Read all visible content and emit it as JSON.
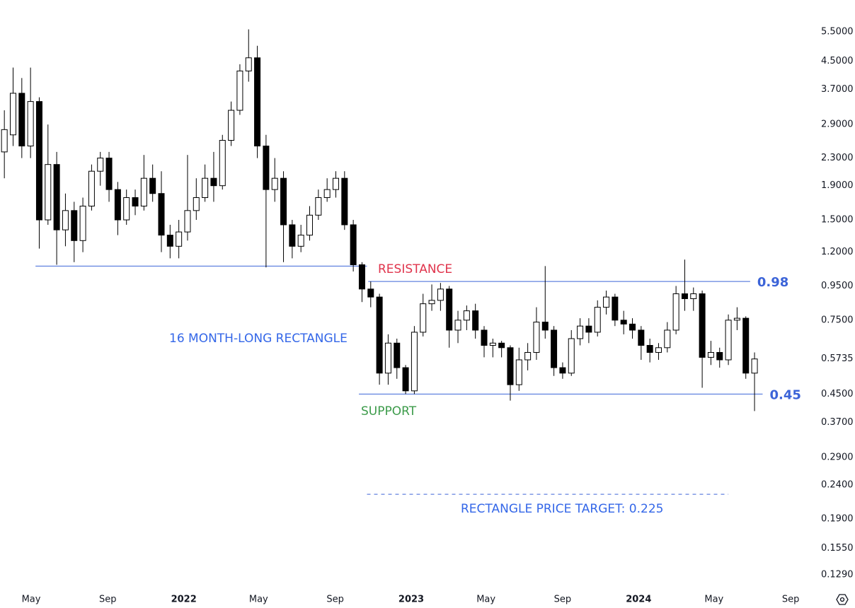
{
  "chart_data": {
    "type": "candlestick",
    "log_scale": true,
    "grid": false,
    "up_color": "#ffffff",
    "down_color": "#000000",
    "outline_color": "#000000",
    "x": [
      "2021-03-19",
      "2021-04-02",
      "2021-04-16",
      "2021-04-30",
      "2021-05-14",
      "2021-05-28",
      "2021-06-11",
      "2021-06-25",
      "2021-07-09",
      "2021-07-23",
      "2021-08-06",
      "2021-08-20",
      "2021-09-03",
      "2021-09-17",
      "2021-10-01",
      "2021-10-15",
      "2021-10-29",
      "2021-11-12",
      "2021-11-26",
      "2021-12-10",
      "2021-12-24",
      "2022-01-07",
      "2022-01-21",
      "2022-02-04",
      "2022-02-18",
      "2022-03-04",
      "2022-03-18",
      "2022-04-01",
      "2022-04-15",
      "2022-04-29",
      "2022-05-13",
      "2022-05-27",
      "2022-06-10",
      "2022-06-24",
      "2022-07-08",
      "2022-07-22",
      "2022-08-05",
      "2022-08-19",
      "2022-09-02",
      "2022-09-16",
      "2022-09-30",
      "2022-10-14",
      "2022-10-28",
      "2022-11-11",
      "2022-11-25",
      "2022-12-09",
      "2022-12-23",
      "2023-01-06",
      "2023-01-20",
      "2023-02-03",
      "2023-02-17",
      "2023-03-03",
      "2023-03-17",
      "2023-03-31",
      "2023-04-14",
      "2023-04-28",
      "2023-05-12",
      "2023-05-26",
      "2023-06-09",
      "2023-06-23",
      "2023-07-07",
      "2023-07-21",
      "2023-08-04",
      "2023-08-18",
      "2023-09-01",
      "2023-09-15",
      "2023-09-29",
      "2023-10-13",
      "2023-10-27",
      "2023-11-10",
      "2023-11-24",
      "2023-12-08",
      "2023-12-22",
      "2024-01-05",
      "2024-01-19",
      "2024-02-02",
      "2024-02-16",
      "2024-03-01",
      "2024-03-15",
      "2024-03-29",
      "2024-04-12",
      "2024-04-26",
      "2024-05-10",
      "2024-05-24",
      "2024-06-07",
      "2024-06-21",
      "2024-07-05"
    ],
    "open": [
      2.4,
      2.7,
      3.6,
      2.5,
      3.4,
      1.5,
      2.2,
      1.4,
      1.6,
      1.3,
      1.65,
      2.1,
      2.3,
      1.85,
      1.5,
      1.75,
      1.65,
      2.0,
      1.8,
      1.35,
      1.25,
      1.38,
      1.6,
      1.75,
      2.0,
      1.9,
      2.6,
      3.2,
      4.2,
      4.6,
      2.5,
      1.85,
      2.0,
      1.45,
      1.25,
      1.35,
      1.55,
      1.75,
      1.85,
      2.0,
      1.45,
      1.1,
      0.93,
      0.88,
      0.52,
      0.64,
      0.54,
      0.46,
      0.69,
      0.84,
      0.86,
      0.93,
      0.7,
      0.75,
      0.8,
      0.7,
      0.63,
      0.64,
      0.62,
      0.48,
      0.57,
      0.6,
      0.74,
      0.7,
      0.54,
      0.52,
      0.66,
      0.72,
      0.69,
      0.82,
      0.88,
      0.75,
      0.73,
      0.7,
      0.63,
      0.6,
      0.62,
      0.7,
      0.9,
      0.87,
      0.9,
      0.58,
      0.6,
      0.57,
      0.75,
      0.76,
      0.52
    ],
    "high": [
      3.2,
      4.3,
      4.0,
      4.3,
      3.5,
      2.9,
      2.4,
      1.8,
      1.7,
      1.75,
      2.2,
      2.4,
      2.4,
      1.95,
      1.85,
      1.85,
      2.35,
      2.2,
      2.1,
      1.45,
      1.5,
      2.35,
      2.0,
      2.2,
      2.4,
      2.7,
      3.4,
      4.4,
      5.6,
      5.0,
      2.7,
      2.3,
      2.1,
      1.5,
      1.45,
      1.65,
      1.85,
      2.0,
      2.1,
      2.1,
      1.5,
      1.12,
      0.98,
      0.9,
      0.68,
      0.66,
      0.55,
      0.72,
      0.9,
      0.96,
      0.97,
      0.95,
      0.8,
      0.83,
      0.84,
      0.72,
      0.66,
      0.65,
      0.63,
      0.62,
      0.64,
      0.82,
      1.09,
      0.72,
      0.56,
      0.7,
      0.76,
      0.76,
      0.86,
      0.92,
      0.9,
      0.8,
      0.76,
      0.72,
      0.66,
      0.64,
      0.74,
      0.95,
      1.14,
      0.94,
      0.92,
      0.65,
      0.62,
      0.78,
      0.82,
      0.77,
      0.6
    ],
    "low": [
      2.0,
      2.5,
      2.3,
      2.3,
      1.23,
      1.45,
      1.1,
      1.25,
      1.12,
      1.2,
      1.6,
      1.9,
      1.7,
      1.35,
      1.45,
      1.55,
      1.6,
      1.7,
      1.2,
      1.15,
      1.15,
      1.3,
      1.5,
      1.7,
      1.7,
      1.85,
      2.5,
      3.1,
      3.9,
      2.3,
      1.08,
      1.7,
      1.12,
      1.15,
      1.2,
      1.3,
      1.5,
      1.7,
      1.75,
      1.4,
      1.05,
      0.85,
      0.82,
      0.48,
      0.48,
      0.5,
      0.45,
      0.45,
      0.67,
      0.8,
      0.8,
      0.62,
      0.64,
      0.7,
      0.66,
      0.58,
      0.58,
      0.58,
      0.43,
      0.46,
      0.53,
      0.57,
      0.66,
      0.51,
      0.5,
      0.51,
      0.63,
      0.64,
      0.67,
      0.78,
      0.72,
      0.68,
      0.66,
      0.57,
      0.56,
      0.57,
      0.6,
      0.68,
      0.8,
      0.8,
      0.47,
      0.55,
      0.54,
      0.55,
      0.7,
      0.5,
      0.4
    ],
    "close": [
      2.8,
      3.6,
      2.5,
      3.4,
      1.5,
      2.2,
      1.4,
      1.6,
      1.3,
      1.65,
      2.1,
      2.3,
      1.85,
      1.5,
      1.75,
      1.65,
      2.0,
      1.8,
      1.35,
      1.25,
      1.38,
      1.6,
      1.75,
      2.0,
      1.9,
      2.6,
      3.2,
      4.2,
      4.6,
      2.5,
      1.85,
      2.0,
      1.45,
      1.25,
      1.35,
      1.55,
      1.75,
      1.85,
      2.0,
      1.45,
      1.1,
      0.93,
      0.88,
      0.52,
      0.64,
      0.54,
      0.46,
      0.69,
      0.84,
      0.86,
      0.93,
      0.7,
      0.75,
      0.8,
      0.7,
      0.63,
      0.64,
      0.62,
      0.48,
      0.57,
      0.6,
      0.74,
      0.7,
      0.54,
      0.52,
      0.66,
      0.72,
      0.69,
      0.82,
      0.88,
      0.75,
      0.73,
      0.7,
      0.63,
      0.6,
      0.62,
      0.7,
      0.9,
      0.87,
      0.9,
      0.58,
      0.6,
      0.57,
      0.75,
      0.76,
      0.52,
      0.5735
    ],
    "xlim": [
      "2021-03-12",
      "2024-09-27"
    ],
    "xticks": [
      {
        "value": "2021-05-01",
        "label": "May"
      },
      {
        "value": "2021-09-01",
        "label": "Sep"
      },
      {
        "value": "2022-01-01",
        "label": "2022"
      },
      {
        "value": "2022-05-01",
        "label": "May"
      },
      {
        "value": "2022-09-01",
        "label": "Sep"
      },
      {
        "value": "2023-01-01",
        "label": "2023"
      },
      {
        "value": "2023-05-01",
        "label": "May"
      },
      {
        "value": "2023-09-01",
        "label": "Sep"
      },
      {
        "value": "2024-01-01",
        "label": "2024"
      },
      {
        "value": "2024-05-01",
        "label": "May"
      },
      {
        "value": "2024-09-01",
        "label": "Sep"
      }
    ],
    "ylim": [
      0.1187,
      6.86
    ],
    "yticks": [
      {
        "value": 0.129,
        "label": "0.1290"
      },
      {
        "value": 0.155,
        "label": "0.1550"
      },
      {
        "value": 0.19,
        "label": "0.1900"
      },
      {
        "value": 0.24,
        "label": "0.2400"
      },
      {
        "value": 0.29,
        "label": "0.2900"
      },
      {
        "value": 0.37,
        "label": "0.3700"
      },
      {
        "value": 0.45,
        "label": "0.4500"
      },
      0.5735,
      {
        "value": 0.75,
        "label": "0.7500"
      },
      {
        "value": 0.95,
        "label": "0.9500"
      },
      {
        "value": 1.2,
        "label": "1.2000"
      },
      {
        "value": 1.5,
        "label": "1.5000"
      },
      {
        "value": 1.9,
        "label": "1.9000"
      },
      {
        "value": 2.3,
        "label": "2.3000"
      },
      {
        "value": 2.9,
        "label": "2.9000"
      },
      {
        "value": 3.7,
        "label": "3.7000"
      },
      {
        "value": 4.5,
        "label": "4.5000"
      },
      {
        "value": 5.5,
        "label": "5.5000"
      }
    ],
    "levels": [
      {
        "value": 1.09,
        "start": "2021-05-08",
        "end": "2022-10-22",
        "color": "#3c64d8",
        "dashed": false
      },
      {
        "value": 0.98,
        "label": "0.98",
        "start": "2022-10-24",
        "end": "2024-06-28",
        "color": "#3c64d8",
        "dashed": false
      },
      {
        "value": 0.45,
        "label": "0.45",
        "start": "2022-10-09",
        "end": "2024-07-18",
        "color": "#3c64d8",
        "dashed": false
      },
      {
        "value": 0.225,
        "start": "2022-10-22",
        "end": "2024-05-24",
        "color": "#3c64d8",
        "dashed": true
      }
    ],
    "annotations": [
      {
        "text": "RESISTANCE",
        "color": "#e0344c"
      },
      {
        "text": "SUPPORT",
        "color": "#3c9b4a"
      },
      {
        "text": "16 MONTH-LONG RECTANGLE",
        "color": "#3467e8"
      },
      {
        "text": "RECTANGLE PRICE TARGET: 0.225",
        "color": "#3467e8"
      }
    ]
  }
}
